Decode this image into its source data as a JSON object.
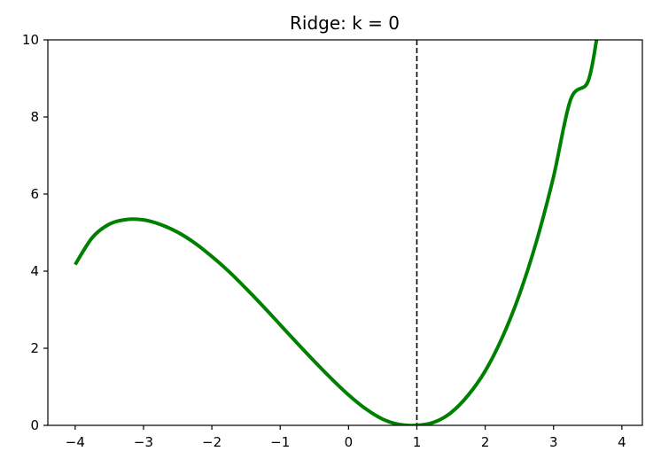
{
  "chart_data": {
    "type": "line",
    "title": "Ridge: k = 0",
    "xlabel": "",
    "ylabel": "",
    "xlim": [
      -4.4,
      4.3
    ],
    "ylim": [
      0,
      10
    ],
    "x_ticks": [
      -4,
      -3,
      -2,
      -1,
      0,
      1,
      2,
      3,
      4
    ],
    "x_tick_labels": [
      "−4",
      "−3",
      "−2",
      "−1",
      "0",
      "1",
      "2",
      "3",
      "4"
    ],
    "y_ticks": [
      0,
      2,
      4,
      6,
      8,
      10
    ],
    "y_tick_labels": [
      "0",
      "2",
      "4",
      "6",
      "8",
      "10"
    ],
    "grid": false,
    "series": [
      {
        "color": "#008000",
        "x": [
          -4.0,
          -3.75,
          -3.5,
          -3.25,
          -3.0,
          -2.75,
          -2.5,
          -2.25,
          -2.0,
          -1.75,
          -1.5,
          -1.25,
          -1.0,
          -0.75,
          -0.5,
          -0.25,
          0.0,
          0.25,
          0.5,
          0.75,
          1.0,
          1.25,
          1.5,
          1.75,
          2.0,
          2.25,
          2.5,
          2.75,
          3.0,
          3.25,
          3.5,
          3.63
        ],
        "y": [
          4.17,
          4.87,
          5.22,
          5.34,
          5.33,
          5.21,
          5.01,
          4.73,
          4.38,
          3.99,
          3.55,
          3.09,
          2.61,
          2.13,
          1.66,
          1.21,
          0.79,
          0.43,
          0.16,
          0.02,
          0.0,
          0.08,
          0.33,
          0.78,
          1.41,
          2.28,
          3.39,
          4.77,
          6.45,
          8.45,
          8.9,
          10.0
        ]
      }
    ],
    "reference_lines": [
      {
        "orientation": "vertical",
        "x": 1,
        "style": "dashed",
        "color": "#000000"
      }
    ]
  }
}
